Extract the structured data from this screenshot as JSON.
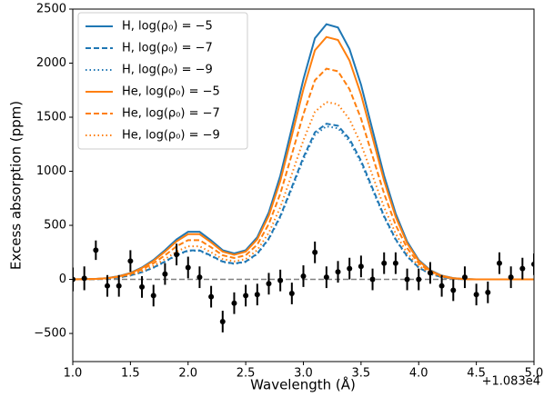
{
  "chart_data": {
    "type": "line",
    "xlabel": "Wavelength (Å)",
    "ylabel": "Excess absorption (ppm)",
    "x_offset_text": "+1.083e4",
    "xlim": [
      1.0,
      5.0
    ],
    "ylim": [
      -760,
      2500
    ],
    "xticks": [
      {
        "value": 1.0,
        "label": "1.0"
      },
      1.5,
      {
        "value": 2.0,
        "label": "2.0"
      },
      2.5,
      {
        "value": 3.0,
        "label": "3.0"
      },
      3.5,
      {
        "value": 4.0,
        "label": "4.0"
      },
      4.5,
      {
        "value": 5.0,
        "label": "5.0"
      }
    ],
    "yticks": [
      {
        "value": -500,
        "label": "−500"
      },
      0,
      500,
      1000,
      1500,
      2000,
      2500
    ],
    "legend": "upper left",
    "hline": 0,
    "hline_color": "#808080",
    "x": [
      1.0,
      1.1,
      1.2,
      1.3,
      1.4,
      1.5,
      1.6,
      1.7,
      1.8,
      1.9,
      2.0,
      2.1,
      2.2,
      2.3,
      2.4,
      2.5,
      2.6,
      2.7,
      2.8,
      2.9,
      3.0,
      3.1,
      3.2,
      3.3,
      3.4,
      3.5,
      3.6,
      3.7,
      3.8,
      3.9,
      4.0,
      4.1,
      4.2,
      4.3,
      4.4,
      4.5,
      4.6,
      4.7,
      4.8,
      4.9,
      5.0
    ],
    "series": [
      {
        "name": "H, log(ρ₀) = −5",
        "color": "#1f77b4",
        "linestyle": "solid",
        "values": [
          0,
          2,
          5,
          12,
          30,
          60,
          110,
          180,
          270,
          370,
          440,
          440,
          360,
          270,
          240,
          270,
          390,
          620,
          960,
          1400,
          1850,
          2230,
          2360,
          2330,
          2130,
          1800,
          1380,
          960,
          610,
          350,
          180,
          85,
          35,
          12,
          3,
          0,
          0,
          0,
          0,
          0,
          0
        ]
      },
      {
        "name": "H, log(ρ₀) = −7",
        "color": "#1f77b4",
        "linestyle": "dashed",
        "values": [
          0,
          1,
          3,
          7,
          18,
          37,
          67,
          110,
          165,
          226,
          268,
          268,
          220,
          165,
          146,
          165,
          238,
          378,
          586,
          854,
          1129,
          1360,
          1440,
          1421,
          1299,
          1098,
          842,
          586,
          372,
          214,
          110,
          52,
          21,
          7,
          2,
          0,
          0,
          0,
          0,
          0,
          0
        ]
      },
      {
        "name": "H, log(ρ₀) = −9",
        "color": "#1f77b4",
        "linestyle": "dotted",
        "values": [
          0,
          1,
          3,
          7,
          18,
          36,
          66,
          108,
          162,
          222,
          264,
          264,
          216,
          162,
          144,
          162,
          234,
          372,
          576,
          840,
          1110,
          1338,
          1416,
          1398,
          1278,
          1080,
          828,
          576,
          366,
          210,
          108,
          51,
          21,
          7,
          2,
          0,
          0,
          0,
          0,
          0,
          0
        ]
      },
      {
        "name": "He, log(ρ₀) = −5",
        "color": "#ff7f0e",
        "linestyle": "solid",
        "values": [
          0,
          2,
          5,
          11,
          28,
          57,
          105,
          171,
          257,
          352,
          418,
          418,
          342,
          257,
          228,
          257,
          371,
          589,
          912,
          1330,
          1758,
          2119,
          2242,
          2214,
          2024,
          1710,
          1311,
          912,
          580,
          333,
          171,
          81,
          33,
          11,
          3,
          0,
          0,
          0,
          0,
          0,
          0
        ]
      },
      {
        "name": "He, log(ρ₀) = −7",
        "color": "#ff7f0e",
        "linestyle": "dashed",
        "values": [
          0,
          2,
          4,
          10,
          25,
          50,
          91,
          149,
          223,
          306,
          363,
          363,
          297,
          223,
          198,
          223,
          322,
          512,
          793,
          1156,
          1528,
          1842,
          1949,
          1925,
          1759,
          1487,
          1140,
          793,
          504,
          289,
          149,
          70,
          29,
          10,
          2,
          0,
          0,
          0,
          0,
          0,
          0
        ]
      },
      {
        "name": "He, log(ρ₀) = −9",
        "color": "#ff7f0e",
        "linestyle": "dotted",
        "values": [
          0,
          1,
          3,
          8,
          21,
          42,
          76,
          125,
          188,
          257,
          306,
          306,
          250,
          188,
          167,
          188,
          271,
          431,
          667,
          973,
          1286,
          1550,
          1640,
          1619,
          1480,
          1251,
          959,
          667,
          424,
          243,
          125,
          59,
          24,
          8,
          2,
          0,
          0,
          0,
          0,
          0,
          0
        ]
      }
    ],
    "points": {
      "color": "#000000",
      "values": [
        0,
        10,
        270,
        -60,
        -60,
        170,
        -70,
        -150,
        50,
        230,
        110,
        20,
        -160,
        -390,
        -220,
        -150,
        -140,
        -40,
        -10,
        -130,
        30,
        250,
        20,
        70,
        100,
        120,
        0,
        150,
        150,
        0,
        0,
        60,
        -60,
        -100,
        20,
        -140,
        -120,
        150,
        20,
        100,
        140
      ],
      "errors": [
        110,
        110,
        90,
        100,
        100,
        100,
        100,
        100,
        100,
        100,
        100,
        100,
        100,
        100,
        100,
        100,
        100,
        100,
        100,
        100,
        100,
        100,
        100,
        100,
        100,
        100,
        100,
        100,
        100,
        100,
        100,
        100,
        100,
        100,
        100,
        100,
        100,
        100,
        100,
        100,
        100
      ]
    }
  }
}
